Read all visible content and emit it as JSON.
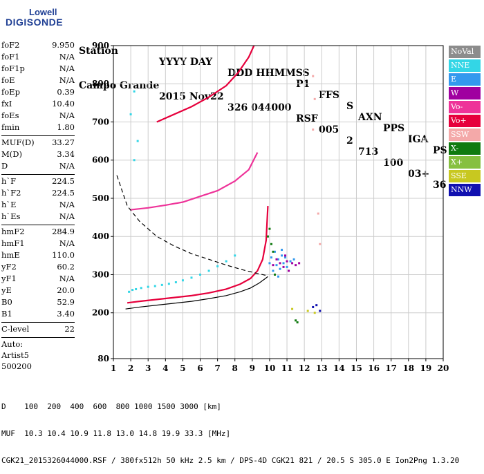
{
  "logo": {
    "line1": "Lowell",
    "line2": "DIGISONDE"
  },
  "header": {
    "labels": [
      "Station",
      "YYYY DAY",
      "DDD HHMMSS",
      "P1",
      "FFS",
      "S",
      "AXN",
      "PPS",
      "IGA",
      "PS"
    ],
    "values": [
      "Campo Grande",
      "2015 Nov22",
      "326 044000",
      "RSF",
      "005",
      "2",
      "713",
      "100",
      "03+",
      "36"
    ]
  },
  "params": {
    "group1": [
      {
        "name": "foF2",
        "value": "9.950"
      },
      {
        "name": "foF1",
        "value": "N/A"
      },
      {
        "name": "foF1p",
        "value": "N/A"
      },
      {
        "name": "foE",
        "value": "N/A"
      },
      {
        "name": "foEp",
        "value": "0.39"
      },
      {
        "name": "fxI",
        "value": "10.40"
      },
      {
        "name": "foEs",
        "value": "N/A"
      },
      {
        "name": "fmin",
        "value": "1.80"
      }
    ],
    "group2": [
      {
        "name": "MUF(D)",
        "value": "33.27"
      },
      {
        "name": "M(D)",
        "value": "3.34"
      },
      {
        "name": "D",
        "value": "N/A"
      }
    ],
    "group3": [
      {
        "name": "h`F",
        "value": "224.5"
      },
      {
        "name": "h`F2",
        "value": "224.5"
      },
      {
        "name": "h`E",
        "value": "N/A"
      },
      {
        "name": "h`Es",
        "value": "N/A"
      }
    ],
    "group4": [
      {
        "name": "hmF2",
        "value": "284.9"
      },
      {
        "name": "hmF1",
        "value": "N/A"
      },
      {
        "name": "hmE",
        "value": "110.0"
      },
      {
        "name": "yF2",
        "value": "60.2"
      },
      {
        "name": "yF1",
        "value": "N/A"
      },
      {
        "name": "yE",
        "value": "20.0"
      },
      {
        "name": "B0",
        "value": "52.9"
      },
      {
        "name": "B1",
        "value": "3.40"
      }
    ],
    "group5": [
      {
        "name": "C-level",
        "value": "22"
      }
    ],
    "auto": [
      "Auto:",
      "Artist5",
      "500200"
    ]
  },
  "legend": [
    {
      "label": "NoVal",
      "color": "#8c8c8c"
    },
    {
      "label": "NNE",
      "color": "#33d6e6"
    },
    {
      "label": "E",
      "color": "#3399ee"
    },
    {
      "label": "W",
      "color": "#a000a0"
    },
    {
      "label": "Vo-",
      "color": "#ee3399"
    },
    {
      "label": "Vo+",
      "color": "#e6003c"
    },
    {
      "label": "SSW",
      "color": "#f4a9a9"
    },
    {
      "label": "X-",
      "color": "#107a10"
    },
    {
      "label": "X+",
      "color": "#86c040"
    },
    {
      "label": "SSE",
      "color": "#c8c820"
    },
    {
      "label": "NNW",
      "color": "#1010b0"
    }
  ],
  "footer": {
    "line1": "D    100  200  400  600  800 1000 1500 3000 [km]",
    "line2": "MUF  10.3 10.4 10.9 11.8 13.0 14.8 19.9 33.3 [MHz]",
    "line3": "CGK21_2015326044000.RSF / 380fx512h 50 kHz 2.5 km / DPS-4D CGK21 821 / 20.5 S 305.0 E Ion2Png 1.3.20"
  },
  "chart_data": {
    "type": "scatter",
    "xlim": [
      1,
      20
    ],
    "ylim": [
      80,
      900
    ],
    "x_ticks": [
      1,
      2,
      3,
      4,
      5,
      6,
      7,
      8,
      9,
      10,
      11,
      12,
      13,
      14,
      15,
      16,
      17,
      18,
      19,
      20
    ],
    "y_ticks": [
      80,
      200,
      300,
      400,
      500,
      600,
      700,
      800,
      900
    ],
    "grid": true,
    "series": [
      {
        "color": "#e6003c",
        "x": [
          1.8,
          2.5,
          3.5,
          4.5,
          5.5,
          6.5,
          7.5,
          8.3,
          8.9,
          9.3,
          9.6,
          9.8,
          9.9
        ],
        "y": [
          226,
          230,
          235,
          240,
          245,
          252,
          262,
          275,
          290,
          310,
          340,
          390,
          480
        ]
      },
      {
        "color": "#000000",
        "x": [
          1.7,
          2.5,
          3.5,
          4.5,
          5.5,
          6.5,
          7.5,
          8.3,
          8.9,
          9.4,
          9.7,
          9.9
        ],
        "y": [
          210,
          215,
          220,
          225,
          230,
          237,
          245,
          255,
          265,
          278,
          288,
          295
        ]
      },
      {
        "color": "#000000",
        "x": [
          1.2,
          1.8,
          2.5,
          3.5,
          4.5,
          5.5,
          6.5,
          7.5,
          8.5,
          9.3,
          9.8
        ],
        "y": [
          560,
          480,
          440,
          400,
          375,
          355,
          340,
          325,
          312,
          303,
          298
        ]
      },
      {
        "color": "#e6003c",
        "x": [
          3.5,
          4.5,
          5.5,
          6.5,
          7.5,
          8.2,
          8.8,
          9.1
        ],
        "y": [
          700,
          720,
          740,
          765,
          795,
          830,
          870,
          900
        ]
      },
      {
        "color": "#ee3399",
        "x": [
          2.0,
          3.0,
          4.0,
          5.0,
          6.0,
          7.0,
          8.0,
          8.8,
          9.3
        ],
        "y": [
          470,
          475,
          482,
          490,
          505,
          520,
          545,
          575,
          620
        ]
      },
      {
        "color": "#3399ee",
        "x": [
          10.0,
          10.1,
          10.2,
          10.3,
          10.4,
          10.5,
          10.6,
          10.7,
          10.8,
          10.9,
          11.0,
          11.2,
          11.4,
          10.5,
          10.7
        ],
        "y": [
          330,
          345,
          310,
          360,
          325,
          340,
          315,
          350,
          330,
          345,
          320,
          335,
          340,
          295,
          365
        ]
      },
      {
        "color": "#a000a0",
        "x": [
          10.2,
          10.4,
          10.6,
          10.8,
          11.0,
          11.3,
          11.5,
          11.7,
          10.9,
          11.1
        ],
        "y": [
          325,
          340,
          330,
          320,
          335,
          330,
          325,
          330,
          350,
          310
        ]
      },
      {
        "color": "#107a10",
        "x": [
          9.9,
          10.0,
          10.1,
          10.2,
          10.3,
          11.5,
          11.6
        ],
        "y": [
          400,
          420,
          380,
          360,
          300,
          180,
          175
        ]
      },
      {
        "color": "#33d6e6",
        "x": [
          1.9,
          2.1,
          2.3,
          2.6,
          3.0,
          3.4,
          3.8,
          4.2,
          4.6,
          5.0,
          5.5,
          6.0,
          6.5,
          7.0,
          7.5,
          8.0,
          2.2,
          2.4,
          2.0,
          2.2
        ],
        "y": [
          255,
          260,
          262,
          265,
          268,
          270,
          273,
          276,
          280,
          285,
          292,
          300,
          310,
          322,
          335,
          350,
          600,
          650,
          720,
          780
        ]
      },
      {
        "color": "#f4a9a9",
        "x": [
          12.5,
          12.6,
          12.5,
          12.8,
          12.9
        ],
        "y": [
          820,
          760,
          680,
          460,
          380
        ]
      },
      {
        "color": "#c8c820",
        "x": [
          11.3,
          12.2,
          12.6
        ],
        "y": [
          210,
          205,
          200
        ]
      },
      {
        "color": "#1010b0",
        "x": [
          12.5,
          12.7,
          12.9
        ],
        "y": [
          215,
          220,
          205
        ]
      }
    ]
  }
}
